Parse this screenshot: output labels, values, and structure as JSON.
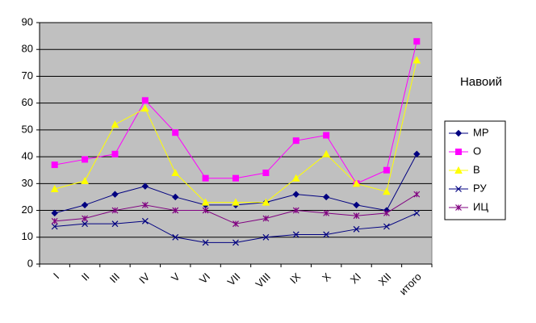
{
  "chart_data": {
    "type": "line",
    "title": "Навоий",
    "categories": [
      "I",
      "II",
      "III",
      "IV",
      "V",
      "VI",
      "VII",
      "VIII",
      "IX",
      "X",
      "XI",
      "XII",
      "итого"
    ],
    "series": [
      {
        "name": "МР",
        "color": "#000080",
        "marker": "diamond",
        "values": [
          19,
          22,
          26,
          29,
          25,
          22,
          22,
          23,
          26,
          25,
          22,
          20,
          41
        ]
      },
      {
        "name": "О",
        "color": "#FF00FF",
        "marker": "square",
        "values": [
          37,
          39,
          41,
          61,
          49,
          32,
          32,
          34,
          46,
          48,
          30,
          35,
          83
        ]
      },
      {
        "name": "В",
        "color": "#FFFF00",
        "marker": "triangle",
        "values": [
          28,
          31,
          52,
          58,
          34,
          23,
          23,
          23,
          32,
          41,
          30,
          27,
          76
        ]
      },
      {
        "name": "РУ",
        "color": "#000080",
        "marker": "x",
        "values": [
          14,
          15,
          15,
          16,
          10,
          8,
          8,
          10,
          11,
          11,
          13,
          14,
          19
        ]
      },
      {
        "name": "ИЦ",
        "color": "#800080",
        "marker": "star",
        "values": [
          16,
          17,
          20,
          22,
          20,
          20,
          15,
          17,
          20,
          19,
          18,
          19,
          26
        ]
      }
    ],
    "ylim": [
      0,
      90
    ],
    "yticks": [
      0,
      10,
      20,
      30,
      40,
      50,
      60,
      70,
      80,
      90
    ],
    "grid": true,
    "legend": "right"
  }
}
